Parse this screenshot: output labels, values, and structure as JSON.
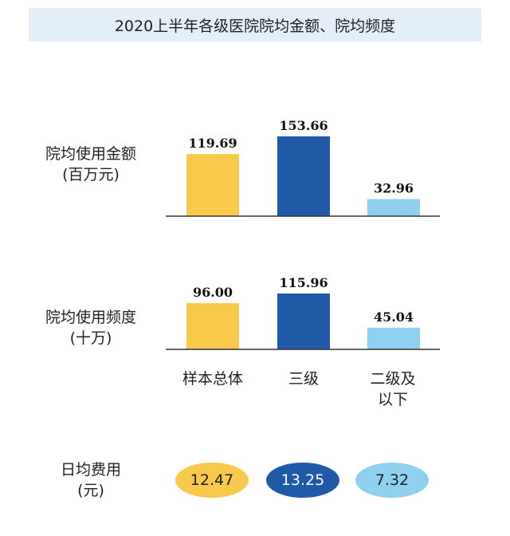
{
  "title": "2020上半年各级医院院均金额、院均频度",
  "colors": {
    "sample": "#f9c94c",
    "tier3": "#1f5aa6",
    "tier2": "#8fd0ef",
    "axis": "#333333"
  },
  "categories": [
    {
      "line1": "样本总体",
      "line2": ""
    },
    {
      "line1": "三级",
      "line2": ""
    },
    {
      "line1": "二级及",
      "line2": "以下"
    }
  ],
  "chart_data": [
    {
      "type": "bar",
      "label_line1": "院均使用金额",
      "label_line2": "(百万元)",
      "categories": [
        "样本总体",
        "三级",
        "二级及以下"
      ],
      "values": [
        119.69,
        153.66,
        32.96
      ],
      "value_labels": [
        "119.69",
        "153.66",
        "32.96"
      ],
      "ylim": [
        0,
        153.66
      ],
      "grid": false,
      "legend": "none"
    },
    {
      "type": "bar",
      "label_line1": "院均使用频度",
      "label_line2": "(十万)",
      "categories": [
        "样本总体",
        "三级",
        "二级及以下"
      ],
      "values": [
        96.0,
        115.96,
        45.04
      ],
      "value_labels": [
        "96.00",
        "115.96",
        "45.04"
      ],
      "ylim": [
        0,
        115.96
      ],
      "grid": false,
      "legend": "none"
    }
  ],
  "daily": {
    "label_line1": "日均费用",
    "label_line2": "(元)",
    "values": [
      "12.47",
      "13.25",
      "7.32"
    ]
  }
}
